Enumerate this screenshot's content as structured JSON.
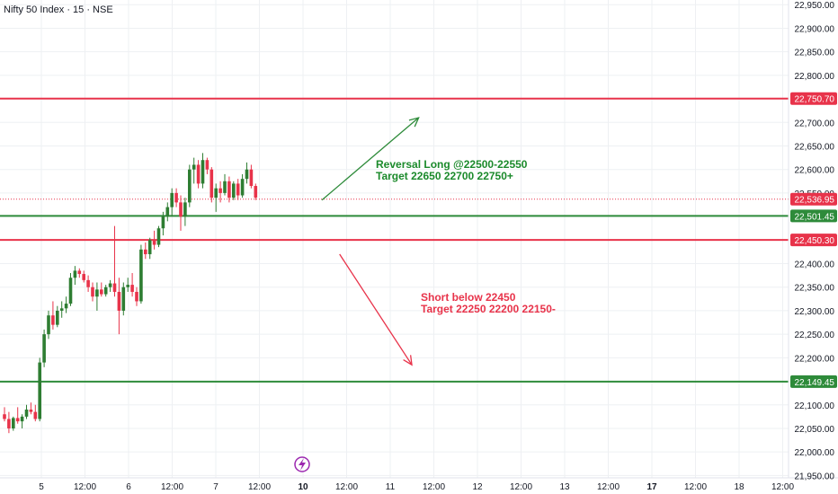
{
  "header": {
    "title": "Nifty 50 Index · 15 · NSE"
  },
  "colors": {
    "up": "#2e7d32",
    "down": "#e8334a",
    "green_line": "#2e8b3a",
    "red_line": "#e8334a",
    "arrow_long": "#2e8b3a",
    "arrow_short": "#e8334a",
    "grid": "#eef0f3",
    "axis_text": "#131722"
  },
  "annotations": {
    "long_line1": "Reversal Long @22500-22550",
    "long_line2": "Target 22650 22700 22750+",
    "short_line1": "Short below 22450",
    "short_line2": "Target 22250 22200 22150-"
  },
  "chart_data": {
    "type": "candlestick",
    "title": "",
    "y_ticks": [
      "22,950.00",
      "22,900.00",
      "22,850.00",
      "22,800.00",
      "22,750.00",
      "22,700.00",
      "22,650.00",
      "22,600.00",
      "22,550.00",
      "22,500.00",
      "22,450.00",
      "22,400.00",
      "22,350.00",
      "22,300.00",
      "22,250.00",
      "22,200.00",
      "22,150.00",
      "22,100.00",
      "22,050.00",
      "22,000.00",
      "21,950.00"
    ],
    "y_tick_values": [
      22950,
      22900,
      22850,
      22800,
      22750,
      22700,
      22650,
      22600,
      22550,
      22500,
      22450,
      22400,
      22350,
      22300,
      22250,
      22200,
      22150,
      22100,
      22050,
      22000,
      21950
    ],
    "ylim": [
      21945,
      22960
    ],
    "x_ticks": [
      {
        "label": "5",
        "bold": false,
        "slot": 0
      },
      {
        "label": "12:00",
        "bold": false,
        "slot": 1
      },
      {
        "label": "6",
        "bold": false,
        "slot": 2
      },
      {
        "label": "12:00",
        "bold": false,
        "slot": 3
      },
      {
        "label": "7",
        "bold": false,
        "slot": 4
      },
      {
        "label": "12:00",
        "bold": false,
        "slot": 5
      },
      {
        "label": "10",
        "bold": true,
        "slot": 6
      },
      {
        "label": "12:00",
        "bold": false,
        "slot": 7
      },
      {
        "label": "11",
        "bold": false,
        "slot": 8
      },
      {
        "label": "12:00",
        "bold": false,
        "slot": 9
      },
      {
        "label": "12",
        "bold": false,
        "slot": 10
      },
      {
        "label": "12:00",
        "bold": false,
        "slot": 11
      },
      {
        "label": "13",
        "bold": false,
        "slot": 12
      },
      {
        "label": "12:00",
        "bold": false,
        "slot": 13
      },
      {
        "label": "17",
        "bold": true,
        "slot": 14
      },
      {
        "label": "12:00",
        "bold": false,
        "slot": 15
      },
      {
        "label": "18",
        "bold": false,
        "slot": 16
      },
      {
        "label": "12:00",
        "bold": false,
        "slot": 17
      }
    ],
    "levels": [
      {
        "name": "22,750.70",
        "value": 22750.7,
        "color": "red",
        "style": "solid"
      },
      {
        "name": "22,536.95",
        "value": 22536.95,
        "color": "red",
        "style": "dotted"
      },
      {
        "name": "22,501.45",
        "value": 22501.45,
        "color": "green",
        "style": "solid"
      },
      {
        "name": "22,450.30",
        "value": 22450.3,
        "color": "red",
        "style": "solid"
      },
      {
        "name": "22,149.45",
        "value": 22149.45,
        "color": "green",
        "style": "solid"
      }
    ],
    "arrows": [
      {
        "name": "long",
        "from": [
          23.5,
          22535
        ],
        "to": [
          30.6,
          22710
        ],
        "color": "green"
      },
      {
        "name": "short",
        "from": [
          24.8,
          22420
        ],
        "to": [
          30.1,
          22185
        ],
        "color": "red"
      }
    ],
    "candles": [
      [
        22080,
        22095,
        22065,
        22070
      ],
      [
        22070,
        22085,
        22040,
        22050
      ],
      [
        22050,
        22075,
        22045,
        22072
      ],
      [
        22072,
        22095,
        22060,
        22065
      ],
      [
        22065,
        22080,
        22050,
        22075
      ],
      [
        22075,
        22100,
        22070,
        22090
      ],
      [
        22090,
        22105,
        22080,
        22085
      ],
      [
        22085,
        22100,
        22065,
        22070
      ],
      [
        22070,
        22200,
        22065,
        22190
      ],
      [
        22190,
        22260,
        22180,
        22250
      ],
      [
        22250,
        22300,
        22240,
        22290
      ],
      [
        22290,
        22320,
        22260,
        22270
      ],
      [
        22270,
        22310,
        22265,
        22300
      ],
      [
        22300,
        22320,
        22285,
        22305
      ],
      [
        22305,
        22330,
        22295,
        22315
      ],
      [
        22315,
        22380,
        22310,
        22370
      ],
      [
        22370,
        22395,
        22355,
        22385
      ],
      [
        22385,
        22390,
        22370,
        22378
      ],
      [
        22378,
        22385,
        22360,
        22365
      ],
      [
        22365,
        22375,
        22340,
        22350
      ],
      [
        22350,
        22360,
        22320,
        22330
      ],
      [
        22330,
        22360,
        22300,
        22345
      ],
      [
        22345,
        22360,
        22330,
        22335
      ],
      [
        22335,
        22355,
        22330,
        22350
      ],
      [
        22350,
        22365,
        22340,
        22358
      ],
      [
        22358,
        22480,
        22330,
        22340
      ],
      [
        22340,
        22370,
        22250,
        22300
      ],
      [
        22300,
        22360,
        22290,
        22350
      ],
      [
        22350,
        22370,
        22340,
        22355
      ],
      [
        22355,
        22380,
        22330,
        22340
      ],
      [
        22340,
        22350,
        22310,
        22320
      ],
      [
        22320,
        22440,
        22315,
        22430
      ],
      [
        22430,
        22445,
        22410,
        22420
      ],
      [
        22420,
        22455,
        22410,
        22450
      ],
      [
        22450,
        22470,
        22430,
        22440
      ],
      [
        22440,
        22480,
        22435,
        22475
      ],
      [
        22475,
        22510,
        22460,
        22500
      ],
      [
        22500,
        22530,
        22490,
        22520
      ],
      [
        22520,
        22560,
        22500,
        22550
      ],
      [
        22550,
        22560,
        22520,
        22530
      ],
      [
        22530,
        22545,
        22470,
        22500
      ],
      [
        22500,
        22540,
        22480,
        22530
      ],
      [
        22530,
        22610,
        22520,
        22600
      ],
      [
        22600,
        22625,
        22570,
        22610
      ],
      [
        22610,
        22620,
        22560,
        22570
      ],
      [
        22570,
        22635,
        22560,
        22620
      ],
      [
        22620,
        22625,
        22590,
        22600
      ],
      [
        22600,
        22605,
        22530,
        22540
      ],
      [
        22540,
        22570,
        22510,
        22560
      ],
      [
        22560,
        22575,
        22530,
        22550
      ],
      [
        22550,
        22590,
        22545,
        22575
      ],
      [
        22575,
        22585,
        22530,
        22540
      ],
      [
        22540,
        22575,
        22535,
        22570
      ],
      [
        22570,
        22580,
        22535,
        22545
      ],
      [
        22545,
        22590,
        22540,
        22580
      ],
      [
        22580,
        22615,
        22570,
        22600
      ],
      [
        22600,
        22610,
        22560,
        22565
      ],
      [
        22565,
        22570,
        22535,
        22540
      ]
    ]
  }
}
